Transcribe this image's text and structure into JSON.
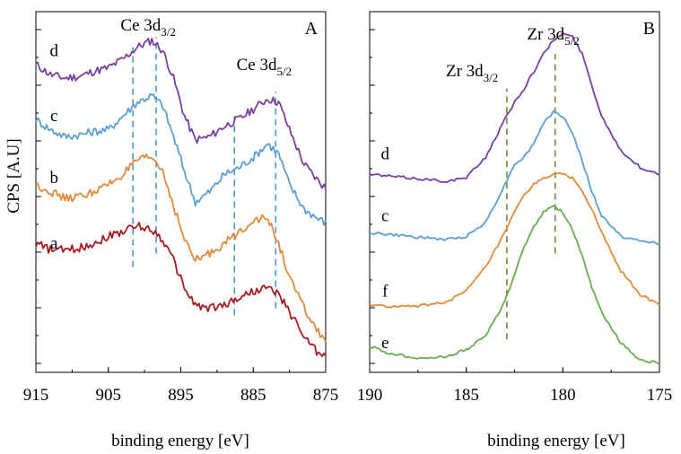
{
  "chart_data": [
    {
      "type": "line",
      "panel_label": "A",
      "title": "",
      "xlabel": "binding energy [eV]",
      "ylabel": "CPS [A.U]",
      "xlim": [
        915,
        875
      ],
      "x_ticks": [
        "915",
        "905",
        "895",
        "885",
        "875"
      ],
      "peak_labels": [
        {
          "main": "Ce 3d",
          "sub": "3/2",
          "x": 899.5
        },
        {
          "main": "Ce 3d",
          "sub": "5/2",
          "x": 883.5
        }
      ],
      "reference_lines": [
        {
          "x": 901.6,
          "color": "#4a9bd4",
          "y_range": [
            0.28,
            0.92
          ]
        },
        {
          "x": 898.4,
          "color": "#4a9bd4",
          "y_range": [
            0.32,
            0.95
          ]
        },
        {
          "x": 887.6,
          "color": "#4a9bd4",
          "y_range": [
            0.14,
            0.72
          ]
        },
        {
          "x": 881.9,
          "color": "#4a9bd4",
          "y_range": [
            0.16,
            0.79
          ]
        }
      ],
      "series": [
        {
          "name": "d",
          "color": "#7a3f9e",
          "x": [
            915,
            913,
            911,
            909,
            907,
            905,
            903,
            901,
            899,
            897.5,
            896,
            894.5,
            893,
            891,
            889,
            887,
            885,
            883,
            881.5,
            880,
            878,
            876,
            875
          ],
          "y": [
            0.87,
            0.84,
            0.83,
            0.835,
            0.85,
            0.86,
            0.885,
            0.92,
            0.94,
            0.91,
            0.83,
            0.72,
            0.65,
            0.66,
            0.69,
            0.71,
            0.74,
            0.77,
            0.76,
            0.68,
            0.58,
            0.53,
            0.51
          ]
        },
        {
          "name": "c",
          "color": "#5b9fd0",
          "x": [
            915,
            913,
            911,
            909,
            907,
            905,
            903,
            901,
            899,
            897.5,
            896,
            894.5,
            893,
            891,
            889,
            887,
            885,
            883,
            881.5,
            880,
            878,
            876,
            875
          ],
          "y": [
            0.71,
            0.68,
            0.66,
            0.665,
            0.675,
            0.68,
            0.72,
            0.76,
            0.78,
            0.75,
            0.66,
            0.56,
            0.47,
            0.5,
            0.55,
            0.57,
            0.6,
            0.64,
            0.61,
            0.52,
            0.45,
            0.42,
            0.41
          ]
        },
        {
          "name": "b",
          "color": "#e08a3c",
          "x": [
            915,
            913,
            911,
            909,
            907,
            905,
            903,
            901,
            899,
            897.5,
            896,
            894.5,
            893,
            891,
            889,
            887,
            885,
            883,
            881.5,
            880,
            878,
            876,
            875
          ],
          "y": [
            0.52,
            0.5,
            0.48,
            0.485,
            0.5,
            0.52,
            0.55,
            0.59,
            0.6,
            0.56,
            0.46,
            0.36,
            0.3,
            0.32,
            0.35,
            0.38,
            0.42,
            0.42,
            0.35,
            0.25,
            0.16,
            0.09,
            0.07
          ]
        },
        {
          "name": "a",
          "color": "#a51d22",
          "x": [
            915,
            913,
            911,
            909,
            907,
            905,
            903,
            901,
            899,
            897.5,
            896,
            894.5,
            893,
            891,
            889,
            887,
            885,
            883,
            881.5,
            880,
            878,
            876,
            875
          ],
          "y": [
            0.35,
            0.33,
            0.33,
            0.335,
            0.35,
            0.37,
            0.385,
            0.4,
            0.39,
            0.36,
            0.3,
            0.22,
            0.17,
            0.16,
            0.17,
            0.19,
            0.21,
            0.22,
            0.2,
            0.15,
            0.08,
            0.03,
            0.02
          ]
        }
      ],
      "curve_labels": [
        {
          "text": "d",
          "x": 912.5,
          "y": 0.91
        },
        {
          "text": "c",
          "x": 912.5,
          "y": 0.72
        },
        {
          "text": "b",
          "x": 912.5,
          "y": 0.54
        },
        {
          "text": "a",
          "x": 912.5,
          "y": 0.35
        }
      ]
    },
    {
      "type": "line",
      "panel_label": "B",
      "title": "",
      "xlabel": "binding energy [eV]",
      "ylabel": "",
      "xlim": [
        190,
        175
      ],
      "x_ticks": [
        "190",
        "185",
        "180",
        "175"
      ],
      "peak_labels": [
        {
          "main": "Zr 3d",
          "sub": "3/2",
          "x": 184.7
        },
        {
          "main": "Zr 3d",
          "sub": "5/2",
          "x": 180.5
        }
      ],
      "reference_lines": [
        {
          "x": 182.9,
          "color": "#6b8a3a",
          "y_range": [
            0.07,
            0.8
          ]
        },
        {
          "x": 180.4,
          "color": "#6b8a3a",
          "y_range": [
            0.32,
            0.9
          ]
        }
      ],
      "series": [
        {
          "name": "d",
          "color": "#7a3f9e",
          "x": [
            190,
            189,
            188,
            187,
            186,
            185,
            184,
            183,
            182.5,
            182,
            181.5,
            181,
            180.5,
            180,
            179.5,
            179,
            178.5,
            178,
            177,
            176,
            175
          ],
          "y": [
            0.55,
            0.545,
            0.54,
            0.535,
            0.53,
            0.54,
            0.6,
            0.71,
            0.76,
            0.8,
            0.85,
            0.9,
            0.94,
            0.96,
            0.95,
            0.9,
            0.81,
            0.72,
            0.62,
            0.57,
            0.55
          ]
        },
        {
          "name": "c",
          "color": "#5b9fd0",
          "x": [
            190,
            189,
            188,
            187,
            186,
            185,
            184,
            183,
            182.5,
            182,
            181.5,
            181,
            180.5,
            180,
            179.5,
            179,
            178.5,
            178,
            177,
            176,
            175
          ],
          "y": [
            0.38,
            0.375,
            0.37,
            0.365,
            0.36,
            0.37,
            0.41,
            0.52,
            0.58,
            0.6,
            0.64,
            0.7,
            0.73,
            0.72,
            0.67,
            0.59,
            0.5,
            0.43,
            0.37,
            0.355,
            0.35
          ]
        },
        {
          "name": "f",
          "color": "#e08a3c",
          "x": [
            190,
            189,
            188,
            187,
            186,
            185,
            184,
            183,
            182.5,
            182,
            181.5,
            181,
            180.5,
            180,
            179.5,
            179,
            178.5,
            178,
            177,
            176,
            175
          ],
          "y": [
            0.17,
            0.165,
            0.165,
            0.17,
            0.18,
            0.21,
            0.28,
            0.38,
            0.44,
            0.49,
            0.52,
            0.54,
            0.55,
            0.55,
            0.54,
            0.5,
            0.45,
            0.38,
            0.27,
            0.2,
            0.17
          ]
        },
        {
          "name": "e",
          "color": "#6aab4f",
          "x": [
            190,
            189,
            188,
            187,
            186,
            185,
            184,
            183,
            182.5,
            182,
            181.5,
            181,
            180.5,
            180,
            179.5,
            179,
            178.5,
            178,
            177,
            176,
            175
          ],
          "y": [
            0.05,
            0.03,
            0.02,
            0.015,
            0.02,
            0.04,
            0.08,
            0.18,
            0.26,
            0.34,
            0.4,
            0.44,
            0.46,
            0.44,
            0.39,
            0.31,
            0.22,
            0.15,
            0.06,
            0.01,
            0.0
          ]
        }
      ],
      "curve_labels": [
        {
          "text": "d",
          "x": 189.2,
          "y": 0.61
        },
        {
          "text": "c",
          "x": 189.2,
          "y": 0.43
        },
        {
          "text": "f",
          "x": 189.2,
          "y": 0.21
        },
        {
          "text": "e",
          "x": 189.2,
          "y": 0.06
        }
      ]
    }
  ]
}
